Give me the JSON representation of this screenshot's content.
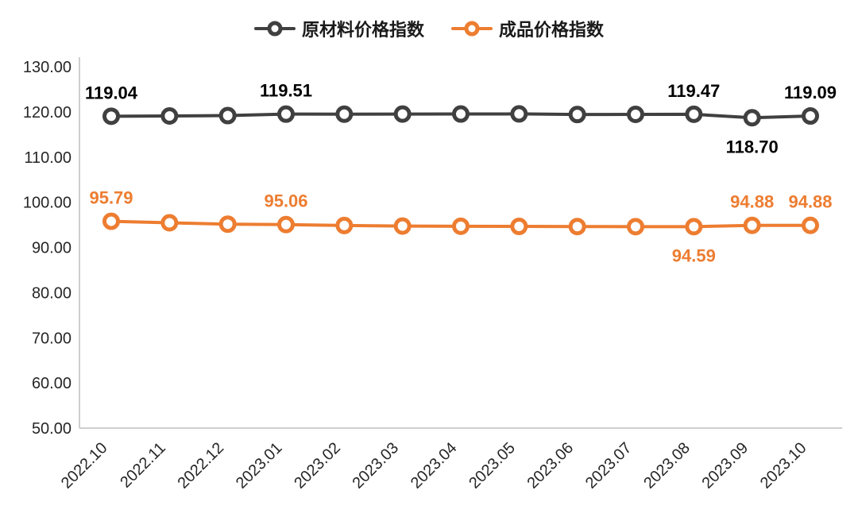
{
  "chart_data": {
    "type": "line",
    "x": [
      "2022.10",
      "2022.11",
      "2022.12",
      "2023.01",
      "2023.02",
      "2023.03",
      "2023.04",
      "2023.05",
      "2023.06",
      "2023.07",
      "2023.08",
      "2023.09",
      "2023.10"
    ],
    "series": [
      {
        "name": "原材料价格指数",
        "color": "#404040",
        "label_color": "#000000",
        "values": [
          119.04,
          119.1,
          119.18,
          119.51,
          119.5,
          119.52,
          119.53,
          119.55,
          119.42,
          119.45,
          119.47,
          118.7,
          119.09
        ],
        "labels": [
          {
            "i": 0,
            "text": "119.04",
            "pos": "above"
          },
          {
            "i": 3,
            "text": "119.51",
            "pos": "above"
          },
          {
            "i": 10,
            "text": "119.47",
            "pos": "above"
          },
          {
            "i": 11,
            "text": "118.70",
            "pos": "below"
          },
          {
            "i": 12,
            "text": "119.09",
            "pos": "above"
          }
        ]
      },
      {
        "name": "成品价格指数",
        "color": "#ED7D31",
        "label_color": "#ED7D31",
        "values": [
          95.79,
          95.45,
          95.15,
          95.06,
          94.85,
          94.72,
          94.68,
          94.65,
          94.62,
          94.6,
          94.59,
          94.88,
          94.88
        ],
        "labels": [
          {
            "i": 0,
            "text": "95.79",
            "pos": "above"
          },
          {
            "i": 3,
            "text": "95.06",
            "pos": "above"
          },
          {
            "i": 10,
            "text": "94.59",
            "pos": "below"
          },
          {
            "i": 11,
            "text": "94.88",
            "pos": "above"
          },
          {
            "i": 12,
            "text": "94.88",
            "pos": "above"
          }
        ]
      }
    ],
    "ylim": [
      50,
      130
    ],
    "ytick_step": 10,
    "ytick_format_decimals": 2,
    "grid": false,
    "legend_position": "top",
    "axis_color": "#BFBFBF",
    "title": "",
    "xlabel": "",
    "ylabel": ""
  }
}
